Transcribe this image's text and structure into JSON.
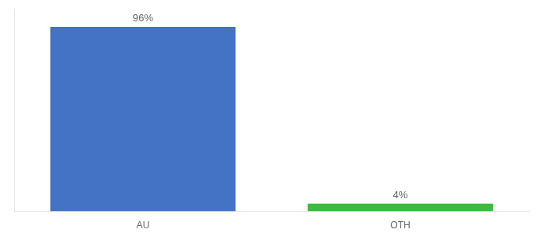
{
  "chart_data": {
    "type": "bar",
    "categories": [
      "AU",
      "OTH"
    ],
    "values": [
      96,
      4
    ],
    "value_labels": [
      "96%",
      "4%"
    ],
    "colors": [
      "#4472c4",
      "#3dbb3d"
    ],
    "data_labels": true,
    "ylim": [
      0,
      105
    ],
    "tick_labels": "x",
    "grid": false
  }
}
